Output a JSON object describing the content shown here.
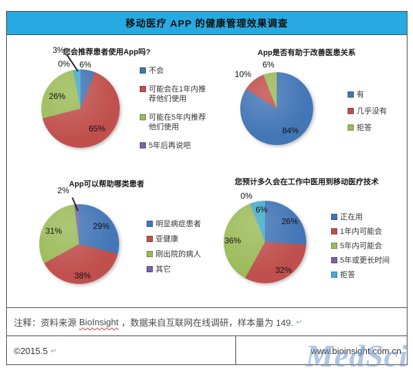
{
  "header": {
    "title": "移动医疗 APP 的健康管理效果调查",
    "bg_color": "#27A9E1"
  },
  "chart_data": [
    {
      "type": "pie",
      "title": "您会推荐患者使用App吗?",
      "legend_position": "right",
      "slices": [
        {
          "label": "不会",
          "value": 6,
          "pct_label": "6%",
          "color": "#4376B6",
          "in_legend": true
        },
        {
          "label": "可能会在1年内推荐他们使用",
          "value": 65,
          "pct_label": "65%",
          "color": "#C0504D",
          "in_legend": true
        },
        {
          "label": "可能在5年内推荐他们使用",
          "value": 26,
          "pct_label": "26%",
          "color": "#9BBB59",
          "in_legend": true
        },
        {
          "label": "5年后再说吧",
          "value": 0,
          "pct_label": "0%",
          "color": "#7864A6",
          "in_legend": true
        },
        {
          "label": "",
          "value": 3,
          "pct_label": "3%",
          "color": "#45ACCB",
          "in_legend": false
        }
      ]
    },
    {
      "type": "pie",
      "title": "App是否有助于改善医患关系",
      "legend_position": "right",
      "slices": [
        {
          "label": "有",
          "value": 84,
          "pct_label": "84%",
          "color": "#4376B6",
          "in_legend": true
        },
        {
          "label": "几乎没有",
          "value": 10,
          "pct_label": "10%",
          "color": "#C0504D",
          "in_legend": true
        },
        {
          "label": "拒答",
          "value": 6,
          "pct_label": "6%",
          "color": "#9BBB59",
          "in_legend": true
        }
      ]
    },
    {
      "type": "pie",
      "title": "App可以帮助哪类患者",
      "legend_position": "right",
      "slices": [
        {
          "label": "明显病症患者",
          "value": 29,
          "pct_label": "29%",
          "color": "#4376B6",
          "in_legend": true
        },
        {
          "label": "亚健康",
          "value": 38,
          "pct_label": "38%",
          "color": "#C0504D",
          "in_legend": true
        },
        {
          "label": "刚出院的病人",
          "value": 31,
          "pct_label": "31%",
          "color": "#9BBB59",
          "in_legend": true
        },
        {
          "label": "其它",
          "value": 2,
          "pct_label": "2%",
          "color": "#7864A6",
          "in_legend": true
        }
      ]
    },
    {
      "type": "pie",
      "title": "您预计多久会在工作中医用到移动医疗技术",
      "legend_position": "right",
      "slices": [
        {
          "label": "正在用",
          "value": 26,
          "pct_label": "26%",
          "color": "#4376B6",
          "in_legend": true
        },
        {
          "label": "1年内可能会",
          "value": 32,
          "pct_label": "32%",
          "color": "#C0504D",
          "in_legend": true
        },
        {
          "label": "5年内可能会",
          "value": 36,
          "pct_label": "36%",
          "color": "#9BBB59",
          "in_legend": true
        },
        {
          "label": "5年或更长时间",
          "value": 0,
          "pct_label": "0%",
          "color": "#7864A6",
          "in_legend": true
        },
        {
          "label": "拒答",
          "value": 6,
          "pct_label": "6%",
          "color": "#45ACCB",
          "in_legend": true
        }
      ]
    }
  ],
  "note": {
    "prefix": "注释：资料来源",
    "source": "BioInsight",
    "suffix": "，数据来自互联网在线调研，样本量为 149.",
    "return_mark": "↵"
  },
  "footer": {
    "copyright": "©2015.5",
    "return_mark": "↵",
    "website": "www.bioinsight.com.cn"
  },
  "watermark": {
    "text": "MedSci"
  }
}
